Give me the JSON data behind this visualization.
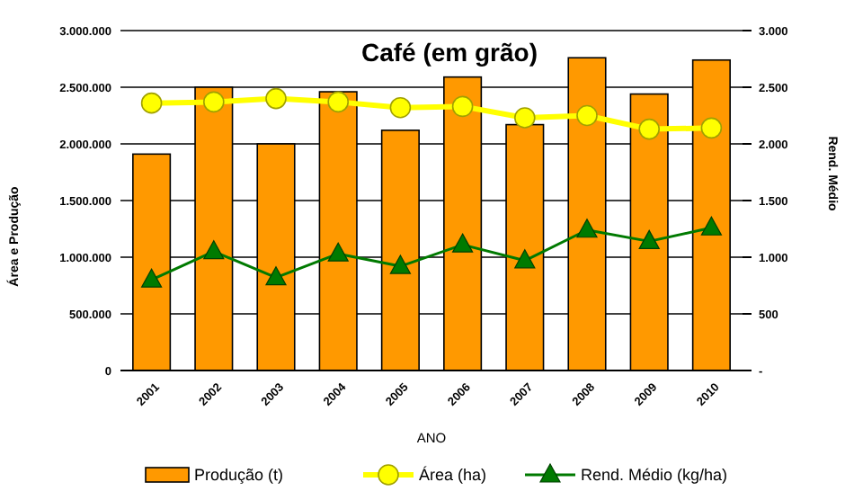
{
  "chart_data": {
    "type": "bar",
    "title": "Café (em grão)",
    "xlabel": "ANO",
    "ylabel": "Área e Produção",
    "y2label": "Rend. Médio",
    "categories": [
      "2001",
      "2002",
      "2003",
      "2004",
      "2005",
      "2006",
      "2007",
      "2008",
      "2009",
      "2010"
    ],
    "series": [
      {
        "name": "Produção (t)",
        "color": "#ff9900",
        "values": [
          1910000,
          2500000,
          2000000,
          2460000,
          2120000,
          2590000,
          2170000,
          2760000,
          2440000,
          2740000
        ]
      },
      {
        "name": "Área (ha)",
        "type": "line",
        "marker": "circle",
        "color": "#ffff00",
        "values": [
          2360000,
          2370000,
          2400000,
          2370000,
          2320000,
          2330000,
          2230000,
          2250000,
          2130000,
          2140000
        ]
      },
      {
        "name": "Rend. Médio (kg/ha)",
        "type": "line",
        "marker": "triangle",
        "axis": "y2",
        "color": "#007a00",
        "values": [
          800,
          1050,
          820,
          1030,
          920,
          1110,
          970,
          1240,
          1140,
          1260
        ]
      }
    ],
    "ylim": [
      0,
      3000000
    ],
    "yticks": [
      0,
      {
        "value": 500000,
        "label": "500.000"
      },
      {
        "value": 1000000,
        "label": "1.000.000"
      },
      {
        "value": 1500000,
        "label": "1.500.000"
      },
      {
        "value": 2000000,
        "label": "2.000.000"
      },
      {
        "value": 2500000,
        "label": "2.500.000"
      },
      {
        "value": 3000000,
        "label": "3.000.000"
      }
    ],
    "y2lim": [
      0,
      3000
    ],
    "y2ticks": [
      {
        "value": 0,
        "label": "-"
      },
      {
        "value": 500,
        "label": "500"
      },
      {
        "value": 1000,
        "label": "1.000"
      },
      {
        "value": 1500,
        "label": "1.500"
      },
      {
        "value": 2000,
        "label": "2.000"
      },
      {
        "value": 2500,
        "label": "2.500"
      },
      {
        "value": 3000,
        "label": "3.000"
      }
    ],
    "grid": "y",
    "legend": "bottom"
  }
}
